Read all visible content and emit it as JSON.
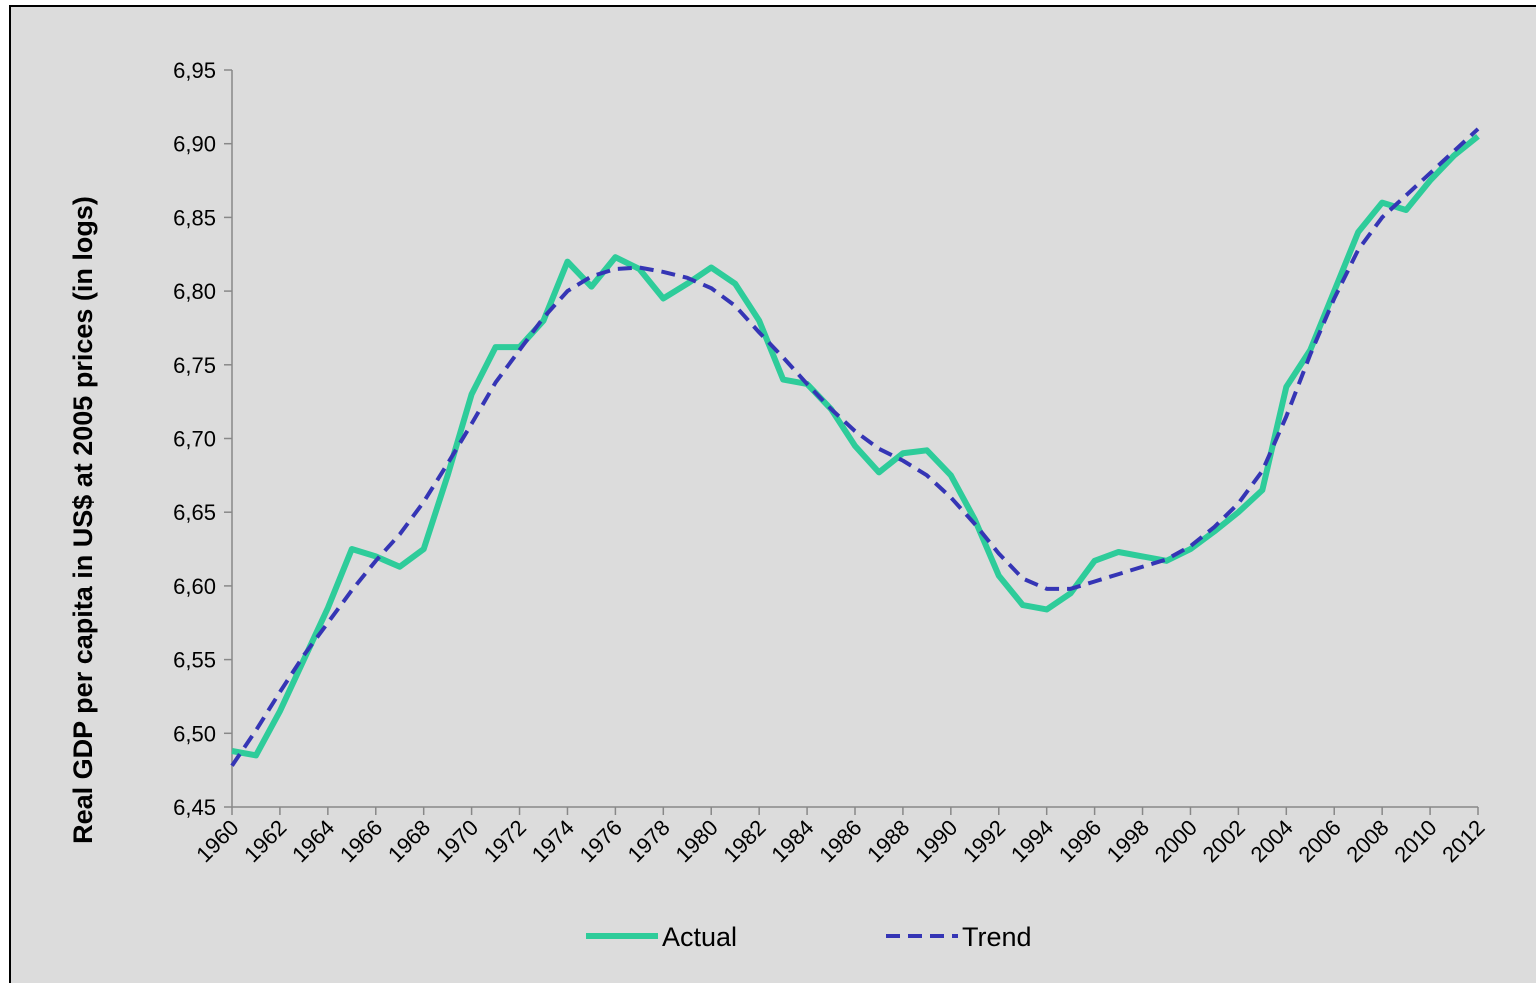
{
  "chart_data": {
    "type": "line",
    "y_label": "Real GDP per capita in US$ at 2005 prices (in logs)",
    "x": [
      1960,
      1961,
      1962,
      1963,
      1964,
      1965,
      1966,
      1967,
      1968,
      1969,
      1970,
      1971,
      1972,
      1973,
      1974,
      1975,
      1976,
      1977,
      1978,
      1979,
      1980,
      1981,
      1982,
      1983,
      1984,
      1985,
      1986,
      1987,
      1988,
      1989,
      1990,
      1991,
      1992,
      1993,
      1994,
      1995,
      1996,
      1997,
      1998,
      1999,
      2000,
      2001,
      2002,
      2003,
      2004,
      2005,
      2006,
      2007,
      2008,
      2009,
      2010,
      2011,
      2012
    ],
    "series": [
      {
        "name": "Actual",
        "color": "#2ecc9a",
        "style": "solid",
        "values": [
          6.488,
          6.485,
          6.515,
          6.55,
          6.585,
          6.625,
          6.62,
          6.613,
          6.625,
          6.675,
          6.73,
          6.762,
          6.762,
          6.78,
          6.82,
          6.803,
          6.823,
          6.815,
          6.795,
          6.805,
          6.816,
          6.805,
          6.78,
          6.74,
          6.737,
          6.72,
          6.695,
          6.677,
          6.69,
          6.692,
          6.675,
          6.645,
          6.607,
          6.587,
          6.584,
          6.595,
          6.617,
          6.623,
          6.62,
          6.617,
          6.625,
          6.637,
          6.65,
          6.665,
          6.735,
          6.76,
          6.8,
          6.84,
          6.86,
          6.855,
          6.875,
          6.892,
          6.905
        ]
      },
      {
        "name": "Trend",
        "color": "#3535b5",
        "style": "dashed",
        "values": [
          6.478,
          6.502,
          6.528,
          6.553,
          6.575,
          6.597,
          6.617,
          6.635,
          6.657,
          6.683,
          6.71,
          6.738,
          6.76,
          6.782,
          6.8,
          6.81,
          6.815,
          6.816,
          6.813,
          6.809,
          6.802,
          6.79,
          6.772,
          6.755,
          6.737,
          6.72,
          6.705,
          6.693,
          6.685,
          6.675,
          6.66,
          6.642,
          6.622,
          6.605,
          6.598,
          6.598,
          6.603,
          6.608,
          6.613,
          6.618,
          6.627,
          6.64,
          6.656,
          6.678,
          6.715,
          6.757,
          6.795,
          6.828,
          6.85,
          6.865,
          6.88,
          6.895,
          6.91
        ]
      }
    ],
    "xlim": [
      1960,
      2012
    ],
    "xticks": [
      1960,
      1962,
      1964,
      1966,
      1968,
      1970,
      1972,
      1974,
      1976,
      1978,
      1980,
      1982,
      1984,
      1986,
      1988,
      1990,
      1992,
      1994,
      1996,
      1998,
      2000,
      2002,
      2004,
      2006,
      2008,
      2010,
      2012
    ],
    "ylim": [
      6.45,
      6.95
    ],
    "yticks": [
      {
        "value": 6.45,
        "label": "6,45"
      },
      {
        "value": 6.5,
        "label": "6,50"
      },
      {
        "value": 6.55,
        "label": "6,55"
      },
      {
        "value": 6.6,
        "label": "6,60"
      },
      {
        "value": 6.65,
        "label": "6,65"
      },
      {
        "value": 6.7,
        "label": "6,70"
      },
      {
        "value": 6.75,
        "label": "6,75"
      },
      {
        "value": 6.8,
        "label": "6,80"
      },
      {
        "value": 6.85,
        "label": "6,85"
      },
      {
        "value": 6.9,
        "label": "6,90"
      },
      {
        "value": 6.95,
        "label": "6,95"
      }
    ],
    "grid": false,
    "legend": "bottom"
  }
}
